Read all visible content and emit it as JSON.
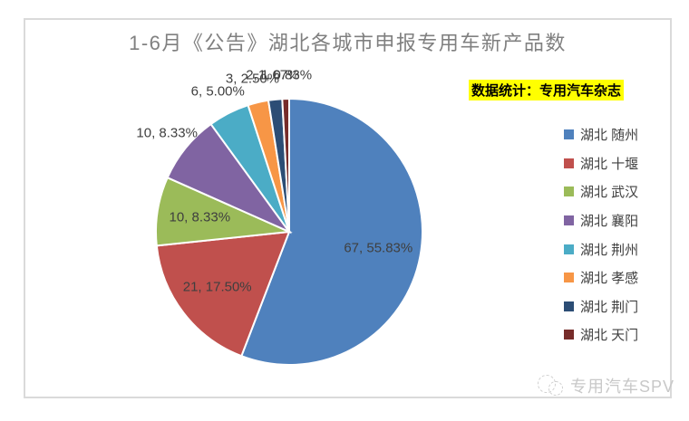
{
  "title": "1-6月《公告》湖北各城市申报专用车新产品数",
  "source_note": "数据统计：专用汽车杂志",
  "watermark": "专用汽车SPV",
  "chart_data": {
    "type": "pie",
    "title": "1-6月《公告》湖北各城市申报专用车新产品数",
    "total": 120,
    "start_angle_deg": 0,
    "direction": "clockwise",
    "legend_position": "right",
    "slice_border_color": "#ffffff",
    "slices": [
      {
        "label": "湖北 随州",
        "value": 67,
        "pct": 55.83,
        "data_label": "67, 55.83%",
        "color": "#4F81BD",
        "label_placement": "inside"
      },
      {
        "label": "湖北 十堰",
        "value": 21,
        "pct": 17.5,
        "data_label": "21, 17.50%",
        "color": "#C0504D",
        "label_placement": "inside"
      },
      {
        "label": "湖北 武汉",
        "value": 10,
        "pct": 8.33,
        "data_label": "10, 8.33%",
        "color": "#9BBB59",
        "label_placement": "inside"
      },
      {
        "label": "湖北 襄阳",
        "value": 10,
        "pct": 8.33,
        "data_label": "10, 8.33%",
        "color": "#8064A2",
        "label_placement": "outside"
      },
      {
        "label": "湖北 荆州",
        "value": 6,
        "pct": 5.0,
        "data_label": "6, 5.00%",
        "color": "#4BACC6",
        "label_placement": "outside"
      },
      {
        "label": "湖北 孝感",
        "value": 3,
        "pct": 2.5,
        "data_label": "3, 2.50%",
        "color": "#F79646",
        "label_placement": "outside"
      },
      {
        "label": "湖北 荆门",
        "value": 2,
        "pct": 1.67,
        "data_label": "2, 1.67%",
        "color": "#2C4D75",
        "label_placement": "outside"
      },
      {
        "label": "湖北 天门",
        "value": 1,
        "pct": 0.83,
        "data_label": "1, 0.83%",
        "color": "#772C2A",
        "label_placement": "outside"
      }
    ]
  }
}
